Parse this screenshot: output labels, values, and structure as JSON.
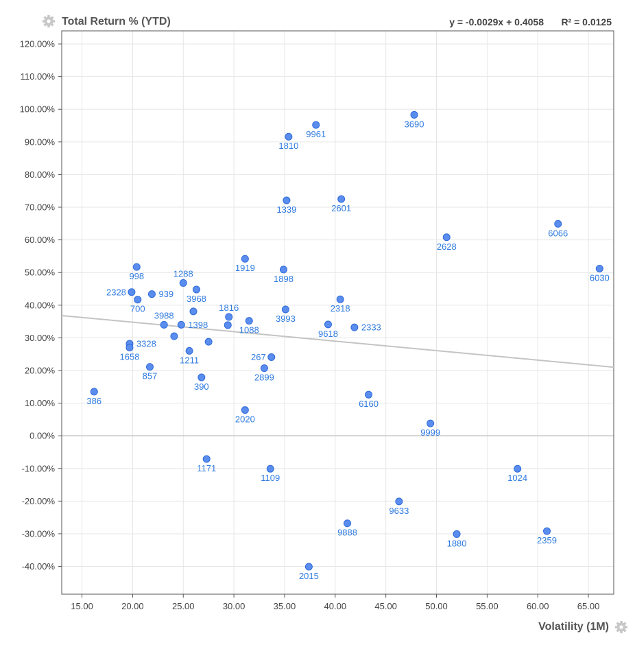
{
  "y_title": "Total Return % (YTD)",
  "x_title": "Volatility (1M)",
  "regression": {
    "equation": "y = -0.0029x + 0.4058",
    "r2": "R² = 0.0125",
    "slope": -0.0029,
    "intercept": 0.4058
  },
  "icons": {
    "y_settings": "gear-icon",
    "x_settings": "gear-icon"
  },
  "colors": {
    "point": "#5b8def",
    "point_stroke": "#2f6bd8",
    "label": "#2f7be0",
    "trend": "#c4c4c4",
    "zero_line": "#c4c4c4",
    "grid": "#e6e6e6"
  },
  "chart_data": {
    "type": "scatter",
    "xlabel": "Volatility (1M)",
    "ylabel": "Total Return % (YTD)",
    "xlim": [
      13,
      67.5
    ],
    "ylim": [
      -48.5,
      124
    ],
    "x_ticks": [
      15,
      20,
      25,
      30,
      35,
      40,
      45,
      50,
      55,
      60,
      65
    ],
    "x_tick_labels": [
      "15.00",
      "20.00",
      "25.00",
      "30.00",
      "35.00",
      "40.00",
      "45.00",
      "50.00",
      "55.00",
      "60.00",
      "65.00"
    ],
    "y_ticks": [
      120,
      110,
      100,
      90,
      80,
      70,
      60,
      50,
      40,
      30,
      20,
      10,
      0,
      -10,
      -20,
      -30,
      -40
    ],
    "y_tick_labels": [
      "120.00%",
      "110.00%",
      "100.00%",
      "90.00%",
      "80.00%",
      "70.00%",
      "60.00%",
      "50.00%",
      "40.00%",
      "30.00%",
      "20.00%",
      "10.00%",
      "0.00%",
      "-10.00%",
      "-20.00%",
      "-30.00%",
      "-40.00%"
    ],
    "grid": true,
    "trendline": true,
    "points": [
      {
        "label": "386",
        "x": 16.2,
        "y": 13.5,
        "pos": "below"
      },
      {
        "label": "998",
        "x": 20.4,
        "y": 51.7,
        "pos": "below"
      },
      {
        "label": "2328",
        "x": 19.9,
        "y": 44.0,
        "pos": "left"
      },
      {
        "label": "700",
        "x": 20.5,
        "y": 41.7,
        "pos": "below"
      },
      {
        "label": "939",
        "x": 21.9,
        "y": 43.4,
        "pos": "right"
      },
      {
        "label": "3328",
        "x": 19.7,
        "y": 28.2,
        "pos": "right"
      },
      {
        "label": "1658",
        "x": 19.7,
        "y": 27.0,
        "pos": "below"
      },
      {
        "label": "857",
        "x": 21.7,
        "y": 21.1,
        "pos": "below"
      },
      {
        "label": "3988",
        "x": 23.1,
        "y": 34.0,
        "pos": "above"
      },
      {
        "label": "1288",
        "x": 25.0,
        "y": 46.8,
        "pos": "above"
      },
      {
        "label": "3968",
        "x": 26.3,
        "y": 44.8,
        "pos": "below"
      },
      {
        "label": "1398",
        "x": 24.8,
        "y": 34.0,
        "pos": "right"
      },
      {
        "label": "",
        "x": 24.1,
        "y": 30.5,
        "pos": "none"
      },
      {
        "label": "",
        "x": 26.0,
        "y": 38.1,
        "pos": "none"
      },
      {
        "label": "",
        "x": 27.5,
        "y": 28.8,
        "pos": "none"
      },
      {
        "label": "1211",
        "x": 25.6,
        "y": 26.0,
        "pos": "below"
      },
      {
        "label": "390",
        "x": 26.8,
        "y": 17.9,
        "pos": "below"
      },
      {
        "label": "1919",
        "x": 31.1,
        "y": 54.2,
        "pos": "below"
      },
      {
        "label": "1816",
        "x": 29.5,
        "y": 36.4,
        "pos": "above"
      },
      {
        "label": "",
        "x": 29.4,
        "y": 33.9,
        "pos": "none"
      },
      {
        "label": "1088",
        "x": 31.5,
        "y": 35.2,
        "pos": "below"
      },
      {
        "label": "1898",
        "x": 34.9,
        "y": 50.9,
        "pos": "below"
      },
      {
        "label": "3993",
        "x": 35.1,
        "y": 38.7,
        "pos": "below"
      },
      {
        "label": "267",
        "x": 33.7,
        "y": 24.1,
        "pos": "left"
      },
      {
        "label": "2899",
        "x": 33.0,
        "y": 20.7,
        "pos": "below"
      },
      {
        "label": "2020",
        "x": 31.1,
        "y": 7.9,
        "pos": "below"
      },
      {
        "label": "1171",
        "x": 27.3,
        "y": -7.1,
        "pos": "below"
      },
      {
        "label": "1109",
        "x": 33.6,
        "y": -10.1,
        "pos": "below"
      },
      {
        "label": "1810",
        "x": 35.4,
        "y": 91.6,
        "pos": "below"
      },
      {
        "label": "9961",
        "x": 38.1,
        "y": 95.2,
        "pos": "below"
      },
      {
        "label": "1339",
        "x": 35.2,
        "y": 72.1,
        "pos": "below"
      },
      {
        "label": "2601",
        "x": 40.6,
        "y": 72.5,
        "pos": "below"
      },
      {
        "label": "2318",
        "x": 40.5,
        "y": 41.8,
        "pos": "below"
      },
      {
        "label": "9618",
        "x": 39.3,
        "y": 34.1,
        "pos": "below"
      },
      {
        "label": "2333",
        "x": 41.9,
        "y": 33.2,
        "pos": "right"
      },
      {
        "label": "6160",
        "x": 43.3,
        "y": 12.6,
        "pos": "below"
      },
      {
        "label": "2015",
        "x": 37.4,
        "y": -40.1,
        "pos": "below"
      },
      {
        "label": "9888",
        "x": 41.2,
        "y": -26.8,
        "pos": "below"
      },
      {
        "label": "9633",
        "x": 46.3,
        "y": -20.1,
        "pos": "below"
      },
      {
        "label": "3690",
        "x": 47.8,
        "y": 98.3,
        "pos": "below"
      },
      {
        "label": "2628",
        "x": 51.0,
        "y": 60.8,
        "pos": "below"
      },
      {
        "label": "9999",
        "x": 49.4,
        "y": 3.8,
        "pos": "below"
      },
      {
        "label": "1880",
        "x": 52.0,
        "y": -30.1,
        "pos": "below"
      },
      {
        "label": "1024",
        "x": 58.0,
        "y": -10.1,
        "pos": "below"
      },
      {
        "label": "2359",
        "x": 60.9,
        "y": -29.2,
        "pos": "below"
      },
      {
        "label": "6066",
        "x": 62.0,
        "y": 64.9,
        "pos": "below"
      },
      {
        "label": "6030",
        "x": 66.1,
        "y": 51.2,
        "pos": "below"
      }
    ]
  }
}
